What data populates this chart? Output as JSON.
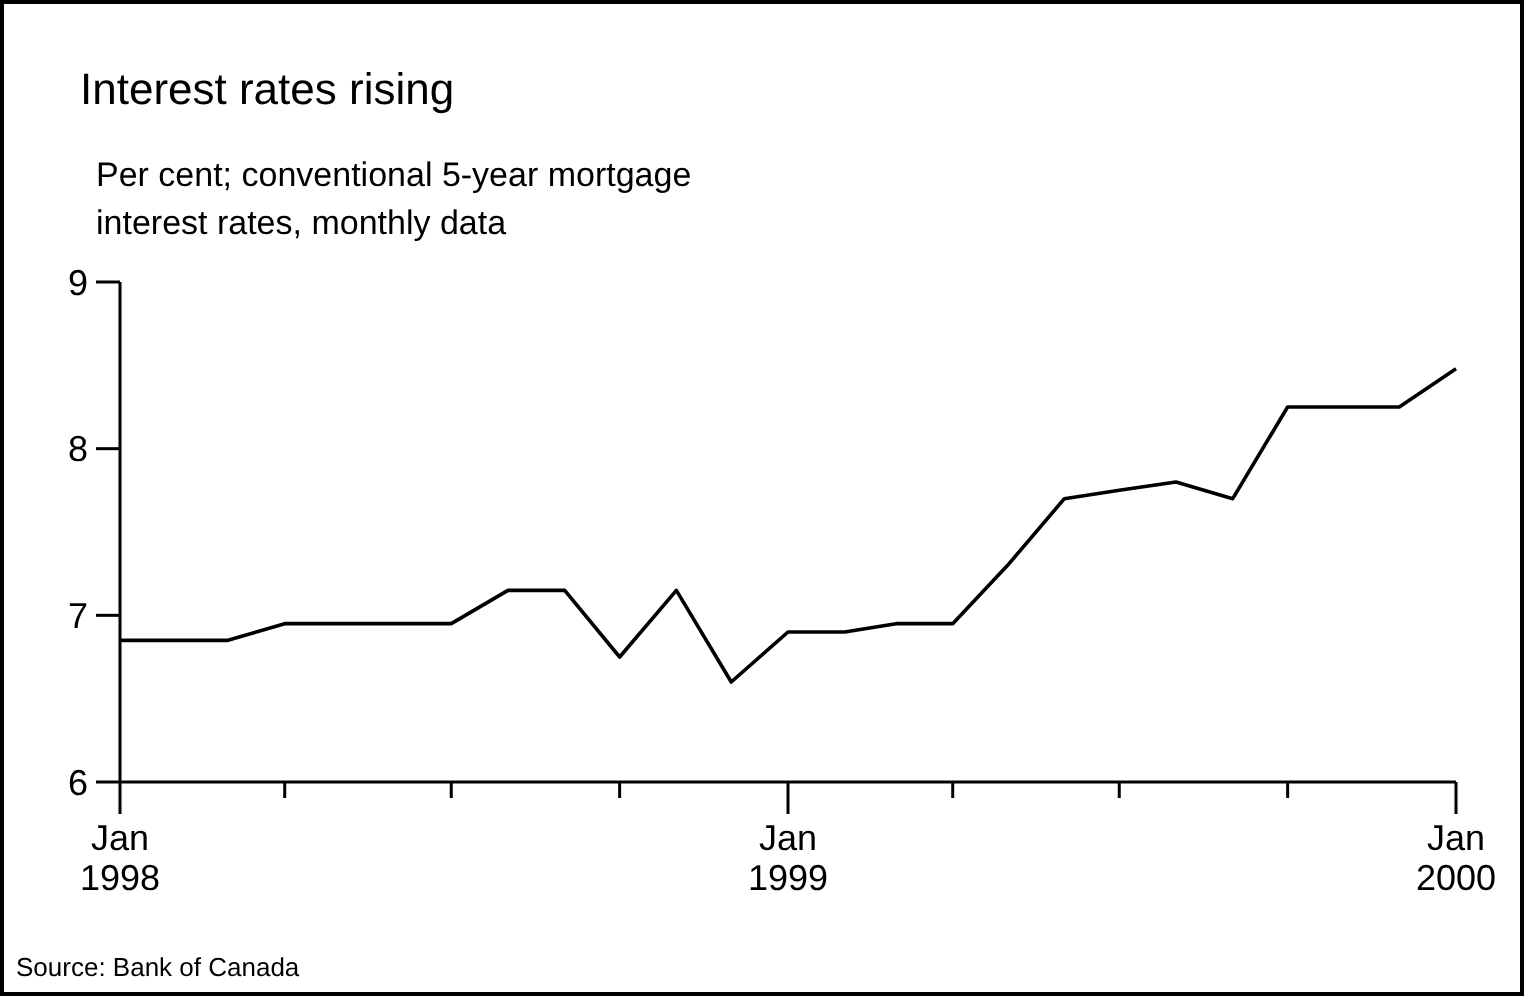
{
  "chart_data": {
    "type": "line",
    "title": "Interest rates rising",
    "subtitle": "Per cent; conventional 5-year mortgage\ninterest rates, monthly data",
    "x": [
      "1998-01",
      "1998-02",
      "1998-03",
      "1998-04",
      "1998-05",
      "1998-06",
      "1998-07",
      "1998-08",
      "1998-09",
      "1998-10",
      "1998-11",
      "1998-12",
      "1999-01",
      "1999-02",
      "1999-03",
      "1999-04",
      "1999-05",
      "1999-06",
      "1999-07",
      "1999-08",
      "1999-09",
      "1999-10",
      "1999-11",
      "1999-12",
      "2000-01"
    ],
    "series": [
      {
        "color": "#000000",
        "values": [
          6.85,
          6.85,
          6.85,
          6.95,
          6.95,
          6.95,
          6.95,
          7.15,
          7.15,
          6.75,
          7.15,
          6.6,
          6.9,
          6.9,
          6.95,
          6.95,
          7.3,
          7.7,
          7.75,
          7.8,
          7.7,
          8.25,
          8.25,
          8.25,
          8.48
        ]
      }
    ],
    "xlim": [
      "1998-01",
      "2000-01"
    ],
    "xticks": [
      {
        "value": "1998-01",
        "label": "Jan\n1998"
      },
      {
        "value": "1998-04",
        "label": null
      },
      {
        "value": "1998-07",
        "label": null
      },
      {
        "value": "1998-10",
        "label": null
      },
      {
        "value": "1999-01",
        "label": "Jan\n1999"
      },
      {
        "value": "1999-04",
        "label": null
      },
      {
        "value": "1999-07",
        "label": null
      },
      {
        "value": "1999-10",
        "label": null
      },
      {
        "value": "2000-01",
        "label": "Jan\n2000"
      }
    ],
    "ylim": [
      6,
      9
    ],
    "yticks": [
      6,
      7,
      8,
      9
    ],
    "grid": false,
    "marker": "none",
    "line_style": "solid",
    "annotations": [
      "Source: Bank of Canada"
    ]
  }
}
